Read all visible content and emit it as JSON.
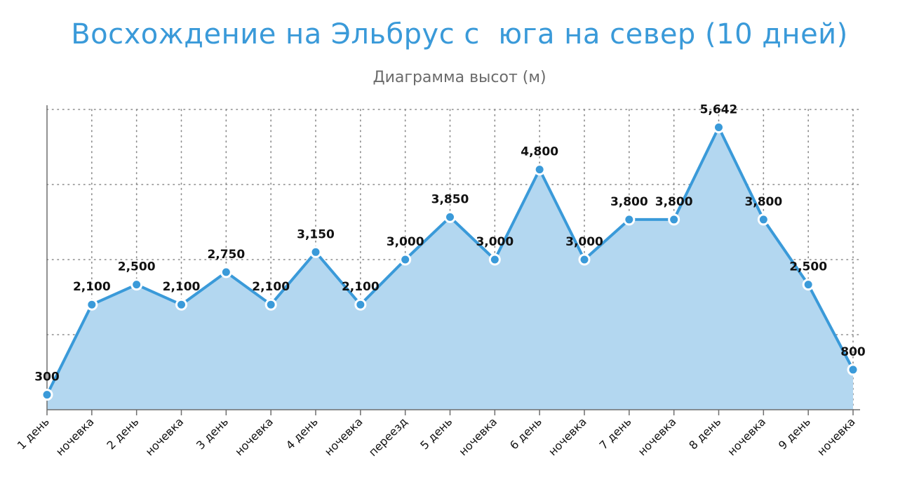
{
  "chart_data": {
    "type": "area",
    "title": "Восхождение на Эльбрус с  юга на север (10 дней)",
    "subtitle": "Диаграмма высот (м)",
    "xlabel": "",
    "ylabel": "",
    "categories": [
      "1 день",
      "ночевка",
      "2 день",
      "ночевка",
      "3 день",
      "ночевка",
      "4 день",
      "ночевка",
      "переезд",
      "5 день",
      "ночевка",
      "6 день",
      "ночевка",
      "7 день",
      "ночевка",
      "8 день",
      "ночевка",
      "9 день",
      "ночевка"
    ],
    "series": [
      {
        "values": [
          300,
          2100,
          2500,
          2100,
          2750,
          2100,
          3150,
          2100,
          3000,
          3850,
          3000,
          4800,
          3000,
          3800,
          3800,
          5642,
          3800,
          2500,
          800
        ],
        "labels": [
          "300",
          "2,100",
          "2,500",
          "2,100",
          "2,750",
          "2,100",
          "3,150",
          "2,100",
          "3,000",
          "3,850",
          "3,000",
          "4,800",
          "3,000",
          "3,800",
          "3,800",
          "5,642",
          "3,800",
          "2,500",
          "800"
        ]
      }
    ],
    "ylim": [
      0,
      6000
    ],
    "y_gridlines": [
      1500,
      3000,
      4500,
      6000
    ],
    "grid": true,
    "y_tick_labels_visible": false,
    "colors": {
      "line": "#3a9ad9",
      "fill": "#b3d7f0",
      "title": "#3a9ad9",
      "subtitle": "#6b6b6b"
    }
  }
}
